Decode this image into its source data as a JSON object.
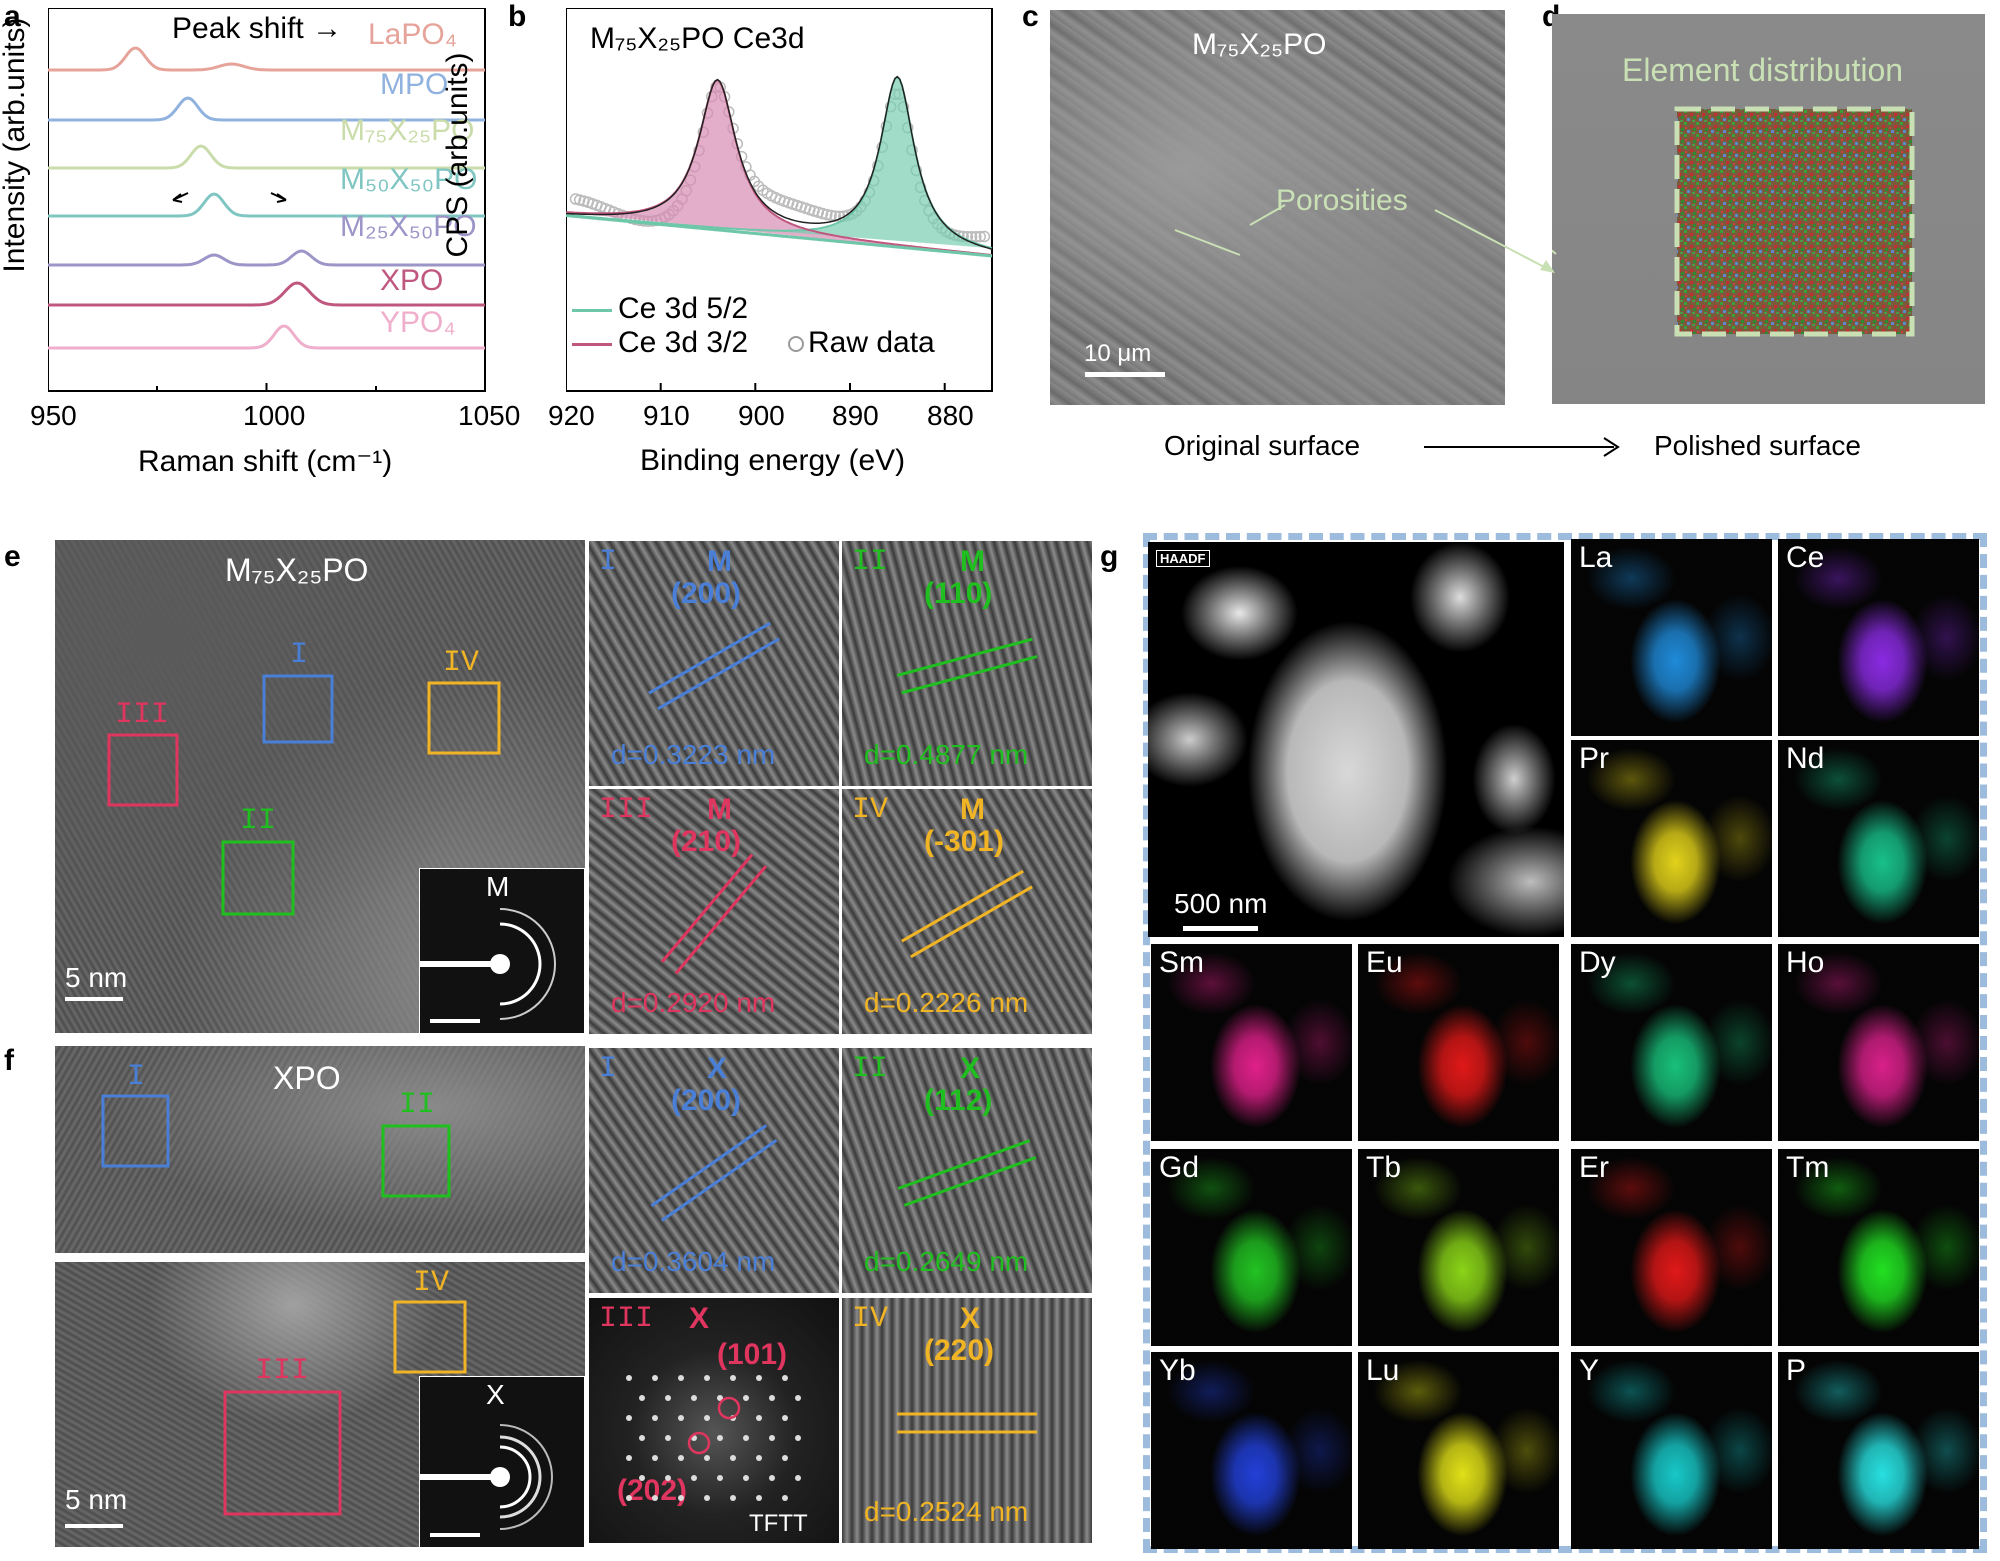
{
  "panels": {
    "a": {
      "label": "a",
      "ylabel": "Intensity (arb.units)",
      "xlabel": "Raman shift (cm⁻¹)",
      "annotation": "Peak shift →",
      "ticks": [
        "950",
        "1000",
        "1050"
      ],
      "series": [
        "LaPO₄",
        "MPO",
        "M₇₅X₂₅PO",
        "M₅₀X₅₀PO",
        "M₂₅X₅₀PO",
        "XPO",
        "YPO₄"
      ],
      "series_colors": [
        "#e6a39a",
        "#8fb2df",
        "#c9dca9",
        "#7fc6c2",
        "#9b95c8",
        "#c0577f",
        "#efaecb"
      ]
    },
    "b": {
      "label": "b",
      "title": "M₇₅X₂₅PO Ce3d",
      "ylabel": "CPS (arb.units)",
      "xlabel": "Binding energy (eV)",
      "ticks": [
        "920",
        "910",
        "900",
        "890",
        "880"
      ],
      "legend": [
        "Ce 3d 5/2",
        "Ce 3d 3/2",
        "Raw data"
      ]
    },
    "c": {
      "label": "c",
      "title": "M₇₅X₂₅PO",
      "annotation": "Porosities",
      "scalebar": "10 μm"
    },
    "d": {
      "label": "d",
      "annotation": "Element distribution"
    },
    "cd_caption": {
      "left": "Original surface",
      "right": "Polished surface"
    },
    "e": {
      "label": "e",
      "title": "M₇₅X₂₅PO",
      "scalebar": "5 nm",
      "saed": "M",
      "boxes": [
        "I",
        "II",
        "III",
        "IV"
      ],
      "insets": [
        {
          "roman": "I",
          "phase": "M",
          "plane": "(200)",
          "d": "d=0.3223 nm"
        },
        {
          "roman": "II",
          "phase": "M",
          "plane": "(110)",
          "d": "d=0.4877 nm"
        },
        {
          "roman": "III",
          "phase": "M",
          "plane": "(210)",
          "d": "d=0.2920 nm"
        },
        {
          "roman": "IV",
          "phase": "M",
          "plane": "(-301)",
          "d": "d=0.2226 nm"
        }
      ]
    },
    "f": {
      "label": "f",
      "title": "XPO",
      "scalebar": "5 nm",
      "saed": "X",
      "boxes": [
        "I",
        "II",
        "III",
        "IV"
      ],
      "insets": [
        {
          "roman": "I",
          "phase": "X",
          "plane": "(200)",
          "d": "d=0.3604 nm"
        },
        {
          "roman": "II",
          "phase": "X",
          "plane": "(112)",
          "d": "d=0.2649 nm"
        },
        {
          "roman": "III",
          "phase": "X",
          "plane": "(101)",
          "plane2": "(202)",
          "d": "TFTT"
        },
        {
          "roman": "IV",
          "phase": "X",
          "plane": "(220)",
          "d": "d=0.2524 nm"
        }
      ]
    },
    "g": {
      "label": "g",
      "haadf_tag": "HAADF",
      "scalebar": "500 nm",
      "maps": [
        {
          "el": "La",
          "color": "#1f8ad8"
        },
        {
          "el": "Ce",
          "color": "#8a2be2"
        },
        {
          "el": "Pr",
          "color": "#e2d21a"
        },
        {
          "el": "Nd",
          "color": "#18c08a"
        },
        {
          "el": "Sm",
          "color": "#e0208a"
        },
        {
          "el": "Eu",
          "color": "#e01818"
        },
        {
          "el": "Dy",
          "color": "#18c07a"
        },
        {
          "el": "Ho",
          "color": "#d8208a"
        },
        {
          "el": "Gd",
          "color": "#22c222"
        },
        {
          "el": "Tb",
          "color": "#8ad418"
        },
        {
          "el": "Er",
          "color": "#e01818"
        },
        {
          "el": "Tm",
          "color": "#22e022"
        },
        {
          "el": "Yb",
          "color": "#2240d8"
        },
        {
          "el": "Lu",
          "color": "#e0e018"
        },
        {
          "el": "Y",
          "color": "#18c8c8"
        },
        {
          "el": "P",
          "color": "#28e0e0"
        }
      ]
    }
  },
  "chart_data": [
    {
      "type": "line",
      "title": "",
      "xlabel": "Raman shift (cm⁻¹)",
      "ylabel": "Intensity (arb.units)",
      "xlim": [
        950,
        1050
      ],
      "series": [
        {
          "name": "LaPO₄",
          "peaks": [
            970
          ]
        },
        {
          "name": "MPO",
          "peaks": [
            982
          ]
        },
        {
          "name": "M₇₅X₂₅PO",
          "peaks": [
            985
          ]
        },
        {
          "name": "M₅₀X₅₀PO",
          "peaks": [
            988
          ]
        },
        {
          "name": "M₂₅X₅₀PO",
          "peaks": [
            988,
            1008
          ]
        },
        {
          "name": "XPO",
          "peaks": [
            1007
          ]
        },
        {
          "name": "YPO₄",
          "peaks": [
            1004
          ]
        }
      ]
    },
    {
      "type": "line",
      "title": "M₇₅X₂₅PO Ce3d",
      "xlabel": "Binding energy (eV)",
      "ylabel": "CPS (arb.units)",
      "xlim": [
        920,
        875
      ],
      "series": [
        {
          "name": "Ce 3d 5/2",
          "peak": 885
        },
        {
          "name": "Ce 3d 3/2",
          "peak": 904
        },
        {
          "name": "Raw data"
        }
      ]
    }
  ]
}
